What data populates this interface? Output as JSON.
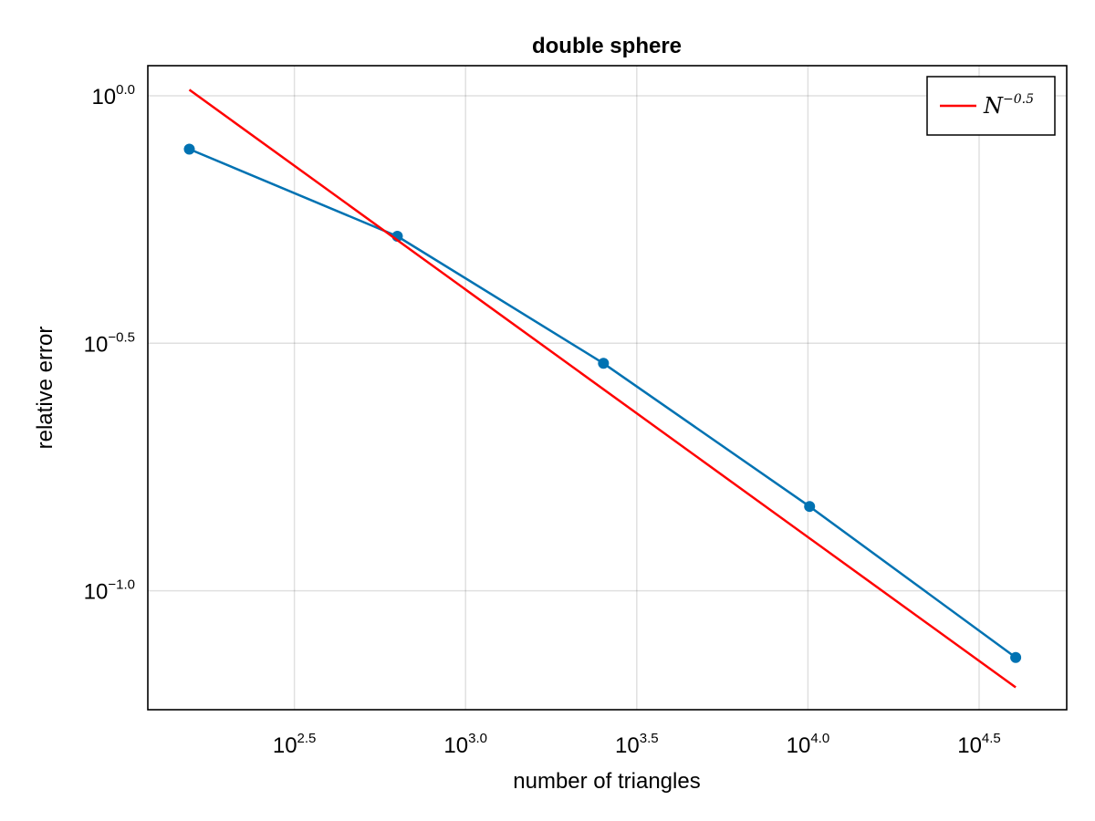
{
  "chart_data": {
    "type": "line",
    "title": "double sphere",
    "xlabel": "number of triangles",
    "ylabel": "relative error",
    "x_scale": "log10",
    "y_scale": "log10",
    "xlim": [
      118,
      57000
    ],
    "ylim": [
      0.0575,
      1.15
    ],
    "grid": true,
    "x_ticks": [
      {
        "base": "10",
        "exp": "2.5",
        "value": 316.23
      },
      {
        "base": "10",
        "exp": "3.0",
        "value": 1000
      },
      {
        "base": "10",
        "exp": "3.5",
        "value": 3162.3
      },
      {
        "base": "10",
        "exp": "4.0",
        "value": 10000
      },
      {
        "base": "10",
        "exp": "4.5",
        "value": 31623
      }
    ],
    "y_ticks": [
      {
        "base": "10",
        "exp": "0.0",
        "value": 1.0
      },
      {
        "base": "10",
        "exp": "−0.5",
        "value": 0.31623
      },
      {
        "base": "10",
        "exp": "−1.0",
        "value": 0.1
      }
    ],
    "series": [
      {
        "color": "#0072b2",
        "markers": true,
        "x": [
          156,
          632,
          2528,
          10112,
          40448
        ],
        "y": [
          0.78,
          0.52,
          0.288,
          0.148,
          0.0733
        ]
      },
      {
        "name": "N^{-0.5}",
        "color": "#ff0000",
        "markers": false,
        "x": [
          156,
          40448
        ],
        "y": [
          1.028,
          0.0638
        ]
      }
    ],
    "legend": {
      "position": "top-right",
      "entries": [
        {
          "base": "N",
          "exp": "−0.5",
          "color": "#ff0000"
        }
      ]
    }
  }
}
